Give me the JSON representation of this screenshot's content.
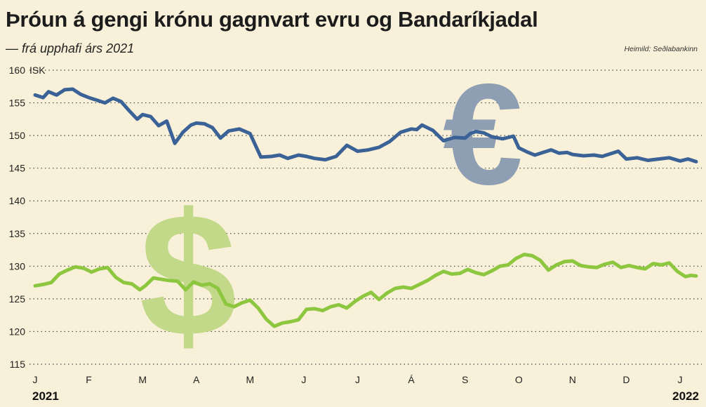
{
  "header": {
    "title": "Þróun á gengi krónu gagnvart evru og Bandaríkjadal",
    "subtitle": "— frá upphafi árs 2021",
    "source": "Heimild: Seðlabankinn"
  },
  "colors": {
    "background": "#f8f0d8",
    "eur_line": "#3a6297",
    "usd_line": "#8dc63f",
    "eur_symbol": "#8e9fb3",
    "usd_symbol": "#c2d98a"
  },
  "icons": {
    "eur_symbol": "€",
    "usd_symbol": "$"
  },
  "chart_data": {
    "type": "line",
    "ylabel": "ISK",
    "ylim": [
      115,
      160
    ],
    "yticks": [
      115,
      120,
      125,
      130,
      135,
      140,
      145,
      150,
      155,
      160
    ],
    "grid": "horizontal dotted",
    "x_range": [
      0,
      12.3
    ],
    "month_labels": [
      "J",
      "F",
      "M",
      "A",
      "M",
      "J",
      "J",
      "Á",
      "S",
      "O",
      "N",
      "D",
      "J"
    ],
    "year_labels": [
      "2021",
      "2022"
    ],
    "series": [
      {
        "key": "eur",
        "x": [
          0,
          0.15,
          0.25,
          0.4,
          0.55,
          0.7,
          0.85,
          1.0,
          1.15,
          1.3,
          1.45,
          1.6,
          1.75,
          1.9,
          2.0,
          2.15,
          2.3,
          2.45,
          2.6,
          2.75,
          2.9,
          3.0,
          3.15,
          3.3,
          3.45,
          3.6,
          3.8,
          4.0,
          4.2,
          4.4,
          4.55,
          4.7,
          4.9,
          5.05,
          5.2,
          5.4,
          5.6,
          5.8,
          6.0,
          6.2,
          6.4,
          6.6,
          6.8,
          7.0,
          7.1,
          7.2,
          7.4,
          7.6,
          7.8,
          8.0,
          8.1,
          8.2,
          8.35,
          8.5,
          8.7,
          8.9,
          9.0,
          9.15,
          9.3,
          9.45,
          9.6,
          9.75,
          9.9,
          10.0,
          10.2,
          10.4,
          10.55,
          10.7,
          10.85,
          11.0,
          11.2,
          11.4,
          11.6,
          11.8,
          12.0,
          12.15,
          12.3
        ],
        "values": [
          156.2,
          155.8,
          156.7,
          156.2,
          157.0,
          157.1,
          156.3,
          155.8,
          155.4,
          155.0,
          155.7,
          155.2,
          153.8,
          152.5,
          153.2,
          152.9,
          151.5,
          152.2,
          148.8,
          150.5,
          151.6,
          151.9,
          151.8,
          151.2,
          149.6,
          150.7,
          151.0,
          150.3,
          146.7,
          146.8,
          147.0,
          146.5,
          147.0,
          146.8,
          146.5,
          146.3,
          146.8,
          148.5,
          147.6,
          147.8,
          148.2,
          149.1,
          150.5,
          151.0,
          150.9,
          151.6,
          150.8,
          149.2,
          149.7,
          149.6,
          150.3,
          150.6,
          150.4,
          149.8,
          149.5,
          149.9,
          148.1,
          147.5,
          147.0,
          147.4,
          147.8,
          147.3,
          147.4,
          147.1,
          146.9,
          147.0,
          146.8,
          147.2,
          147.6,
          146.4,
          146.6,
          146.2,
          146.4,
          146.6,
          146.1,
          146.4,
          146.0
        ]
      },
      {
        "key": "usd",
        "x": [
          0,
          0.15,
          0.3,
          0.45,
          0.6,
          0.75,
          0.9,
          1.05,
          1.2,
          1.35,
          1.5,
          1.65,
          1.8,
          1.95,
          2.05,
          2.2,
          2.35,
          2.5,
          2.65,
          2.8,
          2.95,
          3.1,
          3.25,
          3.4,
          3.55,
          3.7,
          3.85,
          4.0,
          4.15,
          4.3,
          4.45,
          4.6,
          4.75,
          4.9,
          5.05,
          5.2,
          5.35,
          5.5,
          5.65,
          5.8,
          5.95,
          6.1,
          6.25,
          6.4,
          6.55,
          6.7,
          6.85,
          7.0,
          7.15,
          7.3,
          7.45,
          7.6,
          7.75,
          7.9,
          8.05,
          8.2,
          8.35,
          8.5,
          8.65,
          8.8,
          8.95,
          9.1,
          9.25,
          9.4,
          9.55,
          9.7,
          9.85,
          10.0,
          10.15,
          10.3,
          10.45,
          10.6,
          10.75,
          10.9,
          11.05,
          11.2,
          11.35,
          11.5,
          11.65,
          11.8,
          11.95,
          12.1,
          12.2,
          12.3
        ],
        "values": [
          127.0,
          127.2,
          127.5,
          128.8,
          129.4,
          129.9,
          129.7,
          129.1,
          129.6,
          129.8,
          128.3,
          127.5,
          127.3,
          126.4,
          127.0,
          128.2,
          128.0,
          127.8,
          127.7,
          126.4,
          127.6,
          127.1,
          127.3,
          126.6,
          124.2,
          123.8,
          124.4,
          124.8,
          123.6,
          121.9,
          120.8,
          121.3,
          121.5,
          121.8,
          123.4,
          123.5,
          123.2,
          123.8,
          124.1,
          123.6,
          124.6,
          125.4,
          126.0,
          124.9,
          125.9,
          126.6,
          126.8,
          126.6,
          127.2,
          127.8,
          128.6,
          129.2,
          128.8,
          128.9,
          129.5,
          129.0,
          128.7,
          129.3,
          130.0,
          130.2,
          131.2,
          131.8,
          131.6,
          130.9,
          129.4,
          130.2,
          130.7,
          130.8,
          130.1,
          129.9,
          129.8,
          130.3,
          130.6,
          129.8,
          130.1,
          129.8,
          129.6,
          130.4,
          130.2,
          130.5,
          129.2,
          128.4,
          128.6,
          128.5
        ]
      }
    ]
  }
}
